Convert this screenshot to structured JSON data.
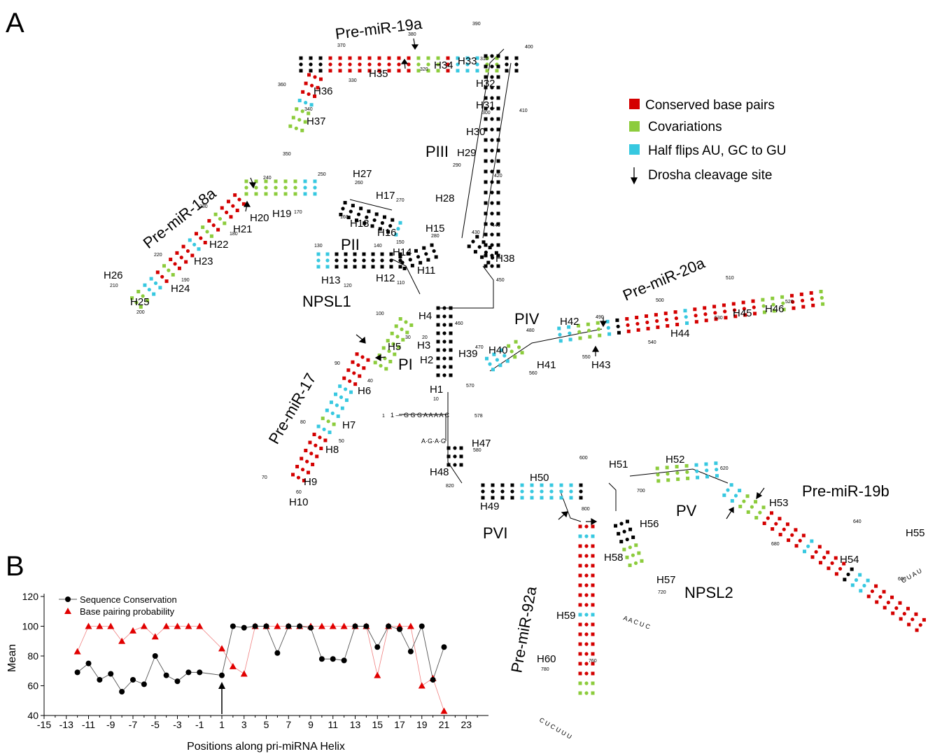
{
  "colors": {
    "conserved": "#d40000",
    "covariation": "#8ccc3c",
    "half_flip": "#37c8e0",
    "black": "#000000",
    "conservation_series": "#000000",
    "pairing_series": "#e10000",
    "pairing_line": "#f08080"
  },
  "panelA": {
    "letter": "A",
    "legend": {
      "conserved": "Conserved base pairs",
      "covariation": "Covariations",
      "half_flip": "Half flips AU, GC to GU",
      "drosha": "Drosha cleavage site"
    },
    "premirs": {
      "mir19a": "Pre-miR-19a",
      "mir18a": "Pre-miR-18a",
      "mir17": "Pre-miR-17",
      "mir20a": "Pre-miR-20a",
      "mir19b": "Pre-miR-19b",
      "mir92a": "Pre-miR-92a"
    },
    "regions": {
      "PI": "PI",
      "PII": "PII",
      "PIII": "PIII",
      "PIV": "PIV",
      "PV": "PV",
      "PVI": "PVI",
      "NPSL1": "NPSL1",
      "NPSL2": "NPSL2"
    },
    "helices": {
      "H1": "H1",
      "H2": "H2",
      "H3": "H3",
      "H4": "H4",
      "H5": "H5",
      "H6": "H6",
      "H7": "H7",
      "H8": "H8",
      "H9": "H9",
      "H10": "H10",
      "H11": "H11",
      "H12": "H12",
      "H13": "H13",
      "H14": "H14",
      "H15": "H15",
      "H16": "H16",
      "H17": "H17",
      "H18": "H18",
      "H19": "H19",
      "H20": "H20",
      "H21": "H21",
      "H22": "H22",
      "H23": "H23",
      "H24": "H24",
      "H25": "H25",
      "H26": "H26",
      "H27": "H27",
      "H28": "H28",
      "H29": "H29",
      "H30": "H30",
      "H31": "H31",
      "H32": "H32",
      "H33": "H33",
      "H34": "H34",
      "H35": "H35",
      "H36": "H36",
      "H37": "H37",
      "H38": "H38",
      "H39": "H39",
      "H40": "H40",
      "H41": "H41",
      "H42": "H42",
      "H43": "H43",
      "H44": "H44",
      "H45": "H45",
      "H46": "H46",
      "H47": "H47",
      "H48": "H48",
      "H49": "H49",
      "H50": "H50",
      "H51": "H51",
      "H52": "H52",
      "H53": "H53",
      "H54": "H54",
      "H55": "H55",
      "H56": "H56",
      "H57": "H57",
      "H58": "H58",
      "H59": "H59",
      "H60": "H60"
    },
    "positions": {
      "p1": "1",
      "p10": "10",
      "p20": "20",
      "p30": "30",
      "p40": "40",
      "p50": "50",
      "p60": "60",
      "p70": "70",
      "p80": "80",
      "p90": "90",
      "p100": "100",
      "p110": "110",
      "p120": "120",
      "p130": "130",
      "p140": "140",
      "p150": "150",
      "p160": "160",
      "p170": "170",
      "p180": "180",
      "p190": "190",
      "p200": "200",
      "p210": "210",
      "p220": "220",
      "p230": "230",
      "p240": "240",
      "p250": "250",
      "p260": "260",
      "p270": "270",
      "p280": "280",
      "p290": "290",
      "p300": "300",
      "p310": "310",
      "p320": "320",
      "p330": "330",
      "p340": "340",
      "p350": "350",
      "p360": "360",
      "p370": "370",
      "p380": "380",
      "p390": "390",
      "p400": "400",
      "p410": "410",
      "p420": "420",
      "p430": "430",
      "p440": "440",
      "p450": "450",
      "p460": "460",
      "p470": "470",
      "p480": "480",
      "p490": "490",
      "p500": "500",
      "p510": "510",
      "p520": "520",
      "p530": "530",
      "p540": "540",
      "p550": "550",
      "p560": "560",
      "p570": "570",
      "p578": "578",
      "p580": "580",
      "p600": "600",
      "p620": "620",
      "p640": "640",
      "p660": "660",
      "p680": "680",
      "p700": "700",
      "p720": "720",
      "p760": "760",
      "p780": "780",
      "p800": "800",
      "p820": "820"
    },
    "sequences": {
      "five_prime": "1 — G G G A A A A C",
      "h47_side": "A·G·A·G",
      "npsl2_loop": "A A C U C",
      "mir19b_loop": "C U A U",
      "mir92a_loop": "C U C U U U"
    }
  },
  "panelB": {
    "letter": "B"
  },
  "chart_data": {
    "type": "scatter",
    "xlabel": "Positions along pri-miRNA Helix",
    "ylabel": "Mean",
    "xlim": [
      -15,
      25
    ],
    "ylim": [
      40,
      120
    ],
    "x_ticks": [
      -15,
      -13,
      -11,
      -9,
      -7,
      -5,
      -3,
      -1,
      1,
      3,
      5,
      7,
      9,
      11,
      13,
      15,
      17,
      19,
      21,
      23
    ],
    "y_ticks": [
      40,
      60,
      80,
      100,
      120
    ],
    "legend_position": "top-left",
    "grid": false,
    "annotation": "arrow at position 1",
    "series": [
      {
        "name": "Sequence Conservation",
        "marker": "circle",
        "x": [
          -12,
          -11,
          -10,
          -9,
          -8,
          -7,
          -6,
          -5,
          -4,
          -3,
          -2,
          -1,
          1,
          2,
          3,
          4,
          5,
          6,
          7,
          8,
          9,
          10,
          11,
          12,
          13,
          14,
          15,
          16,
          17,
          18,
          19,
          20,
          21
        ],
        "y": [
          69,
          75,
          64,
          68,
          56,
          64,
          61,
          80,
          67,
          63,
          69,
          69,
          67,
          100,
          99,
          100,
          100,
          82,
          100,
          100,
          99,
          78,
          78,
          77,
          100,
          100,
          86,
          100,
          98,
          83,
          100,
          64,
          86
        ]
      },
      {
        "name": "Base pairing probability",
        "marker": "triangle",
        "x": [
          -12,
          -11,
          -10,
          -9,
          -8,
          -7,
          -6,
          -5,
          -4,
          -3,
          -2,
          -1,
          1,
          2,
          3,
          4,
          5,
          6,
          7,
          8,
          9,
          10,
          11,
          12,
          13,
          14,
          15,
          16,
          17,
          18,
          19,
          20,
          21
        ],
        "y": [
          83,
          100,
          100,
          100,
          90,
          97,
          100,
          93,
          100,
          100,
          100,
          100,
          85,
          73,
          68,
          100,
          100,
          100,
          100,
          100,
          100,
          100,
          100,
          100,
          100,
          100,
          67,
          100,
          100,
          100,
          60,
          65,
          43
        ]
      }
    ]
  }
}
